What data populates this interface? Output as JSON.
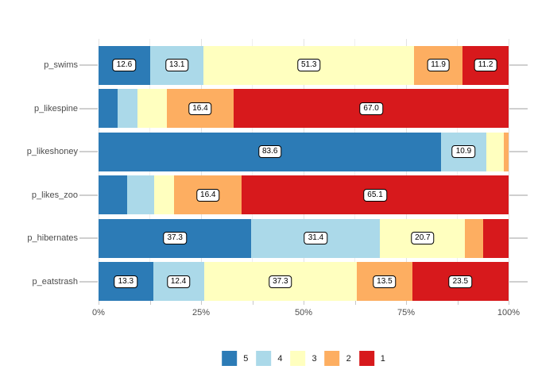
{
  "chart_data": {
    "type": "bar",
    "orientation": "horizontal",
    "stacked": true,
    "title": "",
    "categories": [
      "p_swims",
      "p_likespine",
      "p_likeshoney",
      "p_likes_zoo",
      "p_hibernates",
      "p_eatstrash"
    ],
    "series": [
      {
        "name": "5",
        "color": "#2C7BB6",
        "values": [
          12.6,
          4.6,
          83.6,
          7.0,
          37.3,
          13.3
        ]
      },
      {
        "name": "4",
        "color": "#ABD9E9",
        "values": [
          13.1,
          4.8,
          10.9,
          6.6,
          31.4,
          12.4
        ]
      },
      {
        "name": "3",
        "color": "#FFFFBF",
        "values": [
          51.3,
          7.2,
          4.3,
          4.9,
          20.7,
          37.3
        ]
      },
      {
        "name": "2",
        "color": "#FDAE61",
        "values": [
          11.9,
          16.4,
          1.2,
          16.4,
          4.4,
          13.5
        ]
      },
      {
        "name": "1",
        "color": "#D7191C",
        "values": [
          11.2,
          67.0,
          0.0,
          65.1,
          6.2,
          23.5
        ]
      }
    ],
    "x_axis": {
      "tick_labels": [
        "0%",
        "25%",
        "50%",
        "75%",
        "100%"
      ],
      "tick_values": [
        0,
        25,
        50,
        75,
        100
      ],
      "minor_values": [
        12.5,
        37.5,
        62.5,
        87.5
      ],
      "lim": [
        0,
        100
      ]
    },
    "value_label_min": 10,
    "value_label_format": "one_decimal",
    "legend": {
      "position": "bottom",
      "entries": [
        "5",
        "4",
        "3",
        "2",
        "1"
      ]
    },
    "grid": true
  },
  "styles": {
    "background": "#FFFFFF",
    "axis_text_color": "#4D4D4D",
    "legend_text_color": "#1A1A1A",
    "grid_major_color": "#E2E2E2",
    "grid_minor_color": "#EFEFEF",
    "tick_color": "#CFCFCF",
    "value_label_bg": "#FFFFFF",
    "value_label_border": "#000000"
  }
}
